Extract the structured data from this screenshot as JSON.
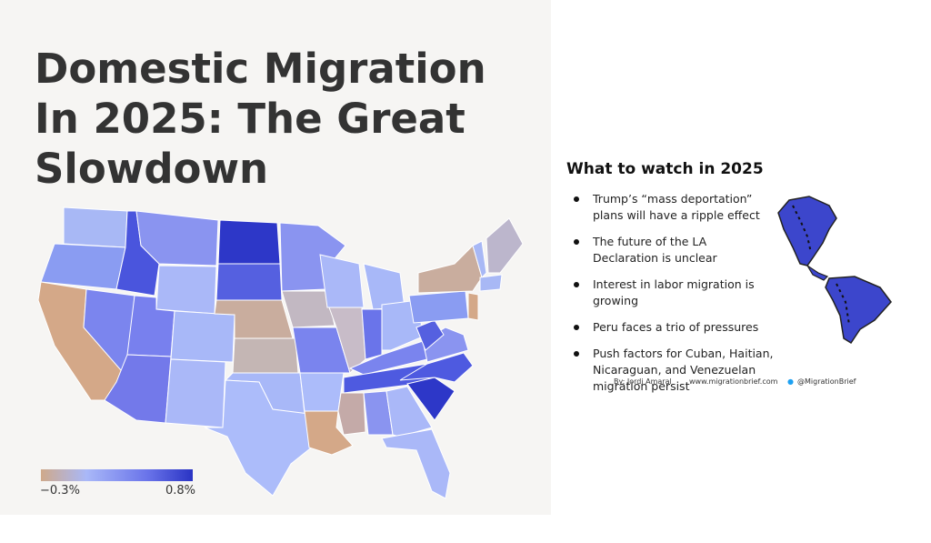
{
  "title": "Domestic Migration In 2025: The Great Slowdown",
  "legend": {
    "min_label": "−0.3%",
    "max_label": "0.8%"
  },
  "sidebar": {
    "heading": "What to watch in 2025",
    "items": [
      "Trump’s “mass deportation” plans will have a ripple effect",
      "The future of the LA Declaration is unclear",
      "Interest in labor migration is growing",
      "Peru faces a trio of pressures",
      "Push factors for Cuban, Haitian, Nicaraguan, and Venezuelan migration persist"
    ]
  },
  "footer": {
    "author": "By: Jordi Amaral",
    "website": "www.migrationbrief.com",
    "twitter": "@MigrationBrief"
  }
}
